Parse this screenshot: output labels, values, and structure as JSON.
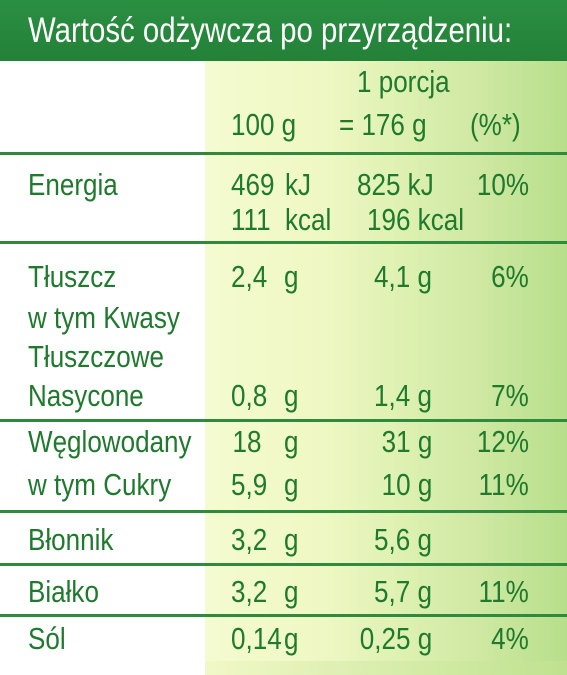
{
  "title": "Wartość odżywcza po przyrządzeniu:",
  "columns": {
    "per100_label": "100 g",
    "portion_line1": "1 porcja",
    "portion_line2": "= 176 g",
    "percent_label": "(%*)"
  },
  "rows": {
    "energia": {
      "label": "Energia",
      "kj_100": "469",
      "kj_unit_100": "kJ",
      "kcal_100": "111",
      "kcal_unit_100": "kcal",
      "kj_portion": "825 kJ",
      "kcal_portion": "196 kcal",
      "percent": "10%"
    },
    "tluszcz": {
      "label": "Tłuszcz",
      "val_100": "2,4",
      "unit_100": "g",
      "portion": "4,1 g",
      "percent": "6%"
    },
    "kwasy": {
      "label_line1": "w tym Kwasy",
      "label_line2": "Tłuszczowe",
      "label_line3": "Nasycone",
      "val_100": "0,8",
      "unit_100": "g",
      "portion": "1,4 g",
      "percent": "7%"
    },
    "weglowodany": {
      "label": "Węglowodany",
      "val_100": "18",
      "unit_100": "g",
      "portion": "31 g",
      "percent": "12%"
    },
    "cukry": {
      "label": "w tym Cukry",
      "val_100": "5,9",
      "unit_100": "g",
      "portion": "10 g",
      "percent": "11%"
    },
    "blonnik": {
      "label": "Błonnik",
      "val_100": "3,2",
      "unit_100": "g",
      "portion": "5,6 g",
      "percent": ""
    },
    "bialko": {
      "label": "Białko",
      "val_100": "3,2",
      "unit_100": "g",
      "portion": "5,7 g",
      "percent": "11%"
    },
    "sol": {
      "label": "Sól",
      "val_100": "0,14",
      "unit_100": "g",
      "portion": "0,25 g",
      "percent": "4%"
    }
  },
  "colors": {
    "header_green": "#238138",
    "text_green": "#1f7a2e",
    "light_column": "#f4fbd0",
    "dark_column": "#b7df8b"
  }
}
